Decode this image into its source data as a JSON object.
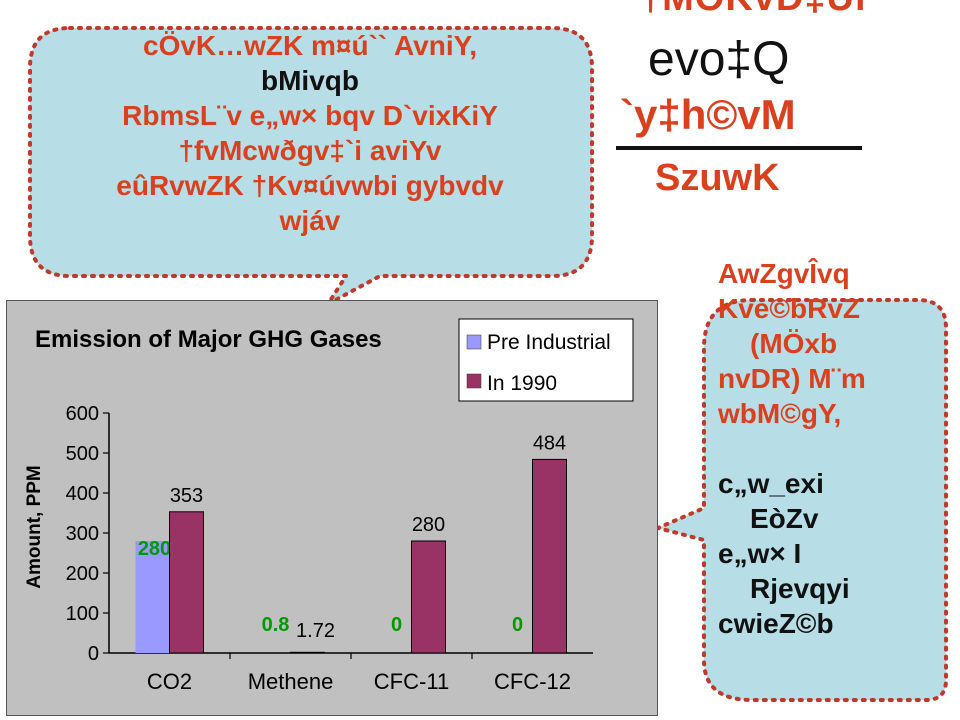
{
  "slide": {
    "title_line1": "†MÖKvD‡Ui",
    "title_line2": "evo‡Q",
    "title_line3": "`y‡h©vM",
    "title_line4": "SzuwK"
  },
  "callout_left": {
    "lines": [
      {
        "text": "cÖvK…wZK m¤ú`` AvniY,",
        "color": "#d9411e"
      },
      {
        "text": "bMivqb",
        "color": "#111111"
      },
      {
        "text": "RbmsL¨v e„w× bqv D`vixKiY",
        "color": "#d9411e"
      },
      {
        "text": "†fvMcwðgv‡`i aviYv",
        "color": "#d9411e"
      },
      {
        "text": "eûRvwZK †Kv¤úvwbi gybvdv",
        "color": "#d9411e"
      },
      {
        "text": "wjáv",
        "color": "#d9411e"
      }
    ]
  },
  "callout_right": {
    "lines": [
      "AwZgvÎvq",
      "Kve©bRvZ",
      "(MÖxb",
      "nvDR) M¨m",
      "wbM©gY,",
      "",
      "c„w_exi",
      "EòZv",
      "e„w× I",
      "Rjevqyi",
      "cwieZ©b"
    ]
  },
  "colors": {
    "accent_red": "#d9411e",
    "bubble_fill": "#b7dde6",
    "bubble_border": "#c0392b",
    "chart_background": "#c0c0c0",
    "pre_industrial": "#9999ff",
    "in_1990": "#993366",
    "data_label_green": "#009900"
  },
  "chart_data": {
    "type": "bar",
    "title": "Emission of Major GHG Gases",
    "xlabel": "",
    "ylabel": "Amount, PPM",
    "categories": [
      "CO2",
      "Methene",
      "CFC-11",
      "CFC-12"
    ],
    "series": [
      {
        "name": "Pre Industrial",
        "values": [
          280,
          0.8,
          0,
          0
        ],
        "labels": [
          "280",
          "0.8",
          "0",
          "0"
        ],
        "color": "#9999ff",
        "label_color": "#009900"
      },
      {
        "name": "In 1990",
        "values": [
          353,
          1.72,
          280,
          484
        ],
        "labels": [
          "353",
          "1.72",
          "280",
          "484"
        ],
        "color": "#993366",
        "label_color": "#000000"
      }
    ],
    "ylim": [
      0,
      600
    ],
    "yticks": [
      0,
      100,
      200,
      300,
      400,
      500,
      600
    ],
    "grid": false,
    "legend": "top-right"
  }
}
